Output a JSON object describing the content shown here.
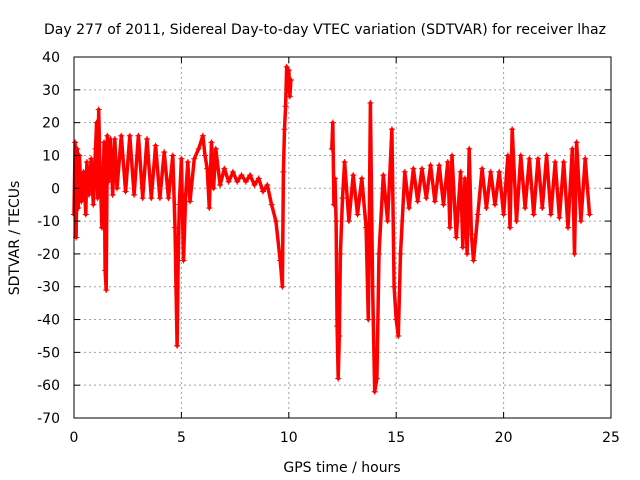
{
  "chart_data": {
    "type": "scatter",
    "title": "Day 277 of 2011, Sidereal Day-to-day VTEC variation (SDTVAR) for receiver lhaz",
    "xlabel": "GPS time / hours",
    "ylabel": "SDTVAR / TECUs",
    "xlim": [
      0,
      25
    ],
    "ylim": [
      -70,
      40
    ],
    "xticks": [
      "0",
      "5",
      "10",
      "15",
      "20",
      "25"
    ],
    "yticks": [
      "-70",
      "-60",
      "-50",
      "-40",
      "-30",
      "-20",
      "-10",
      "0",
      "10",
      "20",
      "30",
      "40"
    ],
    "grid": true,
    "legend": "none",
    "marker": "plus",
    "color": "#ff0000",
    "series": [
      {
        "points": [
          [
            0.0,
            -8
          ],
          [
            0.05,
            14
          ],
          [
            0.1,
            -15
          ],
          [
            0.15,
            12
          ],
          [
            0.2,
            -6
          ],
          [
            0.25,
            10
          ],
          [
            0.35,
            -4
          ],
          [
            0.45,
            5
          ],
          [
            0.55,
            -8
          ],
          [
            0.6,
            8
          ],
          [
            0.7,
            -2
          ],
          [
            0.8,
            9
          ],
          [
            0.9,
            -5
          ],
          [
            1.0,
            12
          ],
          [
            1.05,
            20
          ],
          [
            1.1,
            -3
          ],
          [
            1.15,
            24
          ],
          [
            1.2,
            8
          ],
          [
            1.3,
            -12
          ],
          [
            1.4,
            14
          ],
          [
            1.45,
            -25
          ],
          [
            1.5,
            -31
          ],
          [
            1.55,
            16
          ],
          [
            1.6,
            2
          ],
          [
            1.7,
            15
          ],
          [
            1.8,
            -2
          ],
          [
            1.9,
            15
          ],
          [
            2.0,
            0
          ],
          [
            2.2,
            16
          ],
          [
            2.4,
            -1
          ],
          [
            2.6,
            16
          ],
          [
            2.8,
            -2
          ],
          [
            3.0,
            16
          ],
          [
            3.2,
            -3
          ],
          [
            3.4,
            15
          ],
          [
            3.6,
            -3
          ],
          [
            3.8,
            13
          ],
          [
            4.0,
            -3
          ],
          [
            4.2,
            11
          ],
          [
            4.4,
            -3
          ],
          [
            4.6,
            10
          ],
          [
            4.7,
            -12
          ],
          [
            4.75,
            -30
          ],
          [
            4.8,
            -48
          ],
          [
            4.85,
            -22
          ],
          [
            4.9,
            -5
          ],
          [
            5.0,
            9
          ],
          [
            5.1,
            -22
          ],
          [
            5.2,
            -2
          ],
          [
            5.3,
            8
          ],
          [
            5.4,
            -4
          ],
          [
            5.6,
            9
          ],
          [
            5.8,
            12
          ],
          [
            6.0,
            16
          ],
          [
            6.1,
            10
          ],
          [
            6.2,
            6
          ],
          [
            6.3,
            -6
          ],
          [
            6.4,
            14
          ],
          [
            6.5,
            0
          ],
          [
            6.6,
            12
          ],
          [
            6.8,
            1
          ],
          [
            7.0,
            6
          ],
          [
            7.2,
            2
          ],
          [
            7.4,
            5
          ],
          [
            7.6,
            2
          ],
          [
            7.8,
            4
          ],
          [
            8.0,
            2
          ],
          [
            8.2,
            4
          ],
          [
            8.4,
            1
          ],
          [
            8.6,
            3
          ],
          [
            8.8,
            -1
          ],
          [
            9.0,
            1
          ],
          [
            9.2,
            -5
          ],
          [
            9.4,
            -10
          ],
          [
            9.6,
            -22
          ],
          [
            9.7,
            -30
          ],
          [
            9.75,
            5
          ],
          [
            9.8,
            18
          ],
          [
            9.85,
            25
          ],
          [
            9.9,
            37
          ],
          [
            9.95,
            30
          ],
          [
            10.0,
            36
          ],
          [
            10.05,
            28
          ],
          [
            10.1,
            33
          ],
          [
            12.0,
            12
          ],
          [
            12.05,
            20
          ],
          [
            12.1,
            -5
          ],
          [
            12.15,
            3
          ],
          [
            12.2,
            -10
          ],
          [
            12.25,
            -42
          ],
          [
            12.3,
            -58
          ],
          [
            12.35,
            -45
          ],
          [
            12.4,
            -20
          ],
          [
            12.5,
            -3
          ],
          [
            12.6,
            8
          ],
          [
            12.8,
            -10
          ],
          [
            13.0,
            4
          ],
          [
            13.2,
            -8
          ],
          [
            13.4,
            3
          ],
          [
            13.6,
            -12
          ],
          [
            13.7,
            -40
          ],
          [
            13.8,
            26
          ],
          [
            13.9,
            -30
          ],
          [
            14.0,
            -62
          ],
          [
            14.1,
            -58
          ],
          [
            14.2,
            -20
          ],
          [
            14.4,
            4
          ],
          [
            14.6,
            -10
          ],
          [
            14.8,
            18
          ],
          [
            14.9,
            -30
          ],
          [
            15.0,
            -40
          ],
          [
            15.1,
            -45
          ],
          [
            15.2,
            -20
          ],
          [
            15.4,
            5
          ],
          [
            15.6,
            -6
          ],
          [
            15.8,
            6
          ],
          [
            16.0,
            -4
          ],
          [
            16.2,
            6
          ],
          [
            16.4,
            -3
          ],
          [
            16.6,
            7
          ],
          [
            16.8,
            -4
          ],
          [
            17.0,
            7
          ],
          [
            17.2,
            -5
          ],
          [
            17.4,
            8
          ],
          [
            17.5,
            -12
          ],
          [
            17.6,
            10
          ],
          [
            17.8,
            -15
          ],
          [
            18.0,
            5
          ],
          [
            18.1,
            -18
          ],
          [
            18.2,
            3
          ],
          [
            18.3,
            -20
          ],
          [
            18.4,
            12
          ],
          [
            18.5,
            -14
          ],
          [
            18.6,
            -22
          ],
          [
            18.8,
            -8
          ],
          [
            19.0,
            6
          ],
          [
            19.2,
            -6
          ],
          [
            19.4,
            5
          ],
          [
            19.6,
            -5
          ],
          [
            19.8,
            5
          ],
          [
            20.0,
            -8
          ],
          [
            20.2,
            10
          ],
          [
            20.3,
            -12
          ],
          [
            20.4,
            18
          ],
          [
            20.6,
            -10
          ],
          [
            20.8,
            10
          ],
          [
            21.0,
            -6
          ],
          [
            21.2,
            9
          ],
          [
            21.4,
            -8
          ],
          [
            21.6,
            9
          ],
          [
            21.8,
            -6
          ],
          [
            22.0,
            10
          ],
          [
            22.2,
            -8
          ],
          [
            22.4,
            8
          ],
          [
            22.6,
            -9
          ],
          [
            22.8,
            8
          ],
          [
            23.0,
            -12
          ],
          [
            23.2,
            12
          ],
          [
            23.3,
            -20
          ],
          [
            23.4,
            14
          ],
          [
            23.6,
            -10
          ],
          [
            23.8,
            9
          ],
          [
            24.0,
            -8
          ]
        ]
      }
    ]
  }
}
